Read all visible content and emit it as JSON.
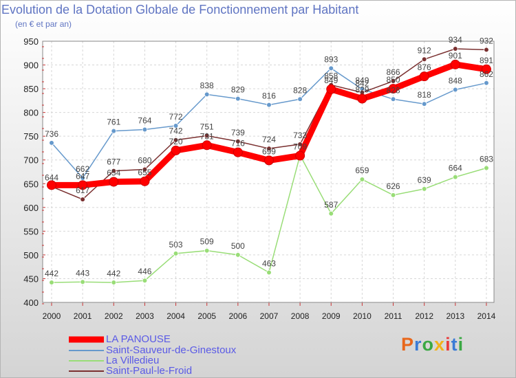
{
  "chart_data": {
    "type": "line",
    "title": "Evolution de la Dotation Globale de Fonctionnement par Habitant",
    "subtitle": "(en € et par an)",
    "x": [
      "2000",
      "2001",
      "2002",
      "2003",
      "2004",
      "2005",
      "2006",
      "2007",
      "2008",
      "2009",
      "2010",
      "2011",
      "2012",
      "2013",
      "2014"
    ],
    "ylim": [
      400,
      950
    ],
    "yticks": [
      400,
      450,
      500,
      550,
      600,
      650,
      700,
      750,
      800,
      850,
      900,
      950
    ],
    "grid": true,
    "series": [
      {
        "name": "LA PANOUSE",
        "color": "#ff0000",
        "emphasis": true,
        "values": [
          647,
          647,
          654,
          655,
          720,
          731,
          716,
          699,
          709,
          849,
          829,
          850,
          876,
          901,
          891
        ],
        "labels": [
          "",
          "647",
          "654",
          "655",
          "720",
          "731",
          "716",
          "699",
          "709",
          "849",
          "829",
          "850",
          "876",
          "901",
          "891"
        ]
      },
      {
        "name": "Saint-Sauveur-de-Ginestoux",
        "color": "#6699cc",
        "values": [
          736,
          662,
          761,
          764,
          772,
          838,
          829,
          816,
          828,
          893,
          849,
          828,
          818,
          848,
          862
        ],
        "labels": [
          "736",
          "662",
          "761",
          "764",
          "772",
          "838",
          "829",
          "816",
          "828",
          "893",
          "849",
          "828",
          "818",
          "848",
          "862"
        ]
      },
      {
        "name": "La Villedieu",
        "color": "#99dd77",
        "values": [
          442,
          443,
          442,
          446,
          503,
          509,
          500,
          463,
          710,
          587,
          659,
          626,
          639,
          664,
          683
        ],
        "labels": [
          "442",
          "443",
          "442",
          "446",
          "503",
          "509",
          "500",
          "463",
          "",
          "587",
          "659",
          "626",
          "639",
          "664",
          "683"
        ]
      },
      {
        "name": "Saint-Paul-le-Froid",
        "color": "#7a3030",
        "values": [
          644,
          617,
          677,
          680,
          742,
          751,
          739,
          724,
          733,
          858,
          842,
          866,
          912,
          934,
          932
        ],
        "labels": [
          "644",
          "617",
          "677",
          "680",
          "742",
          "751",
          "739",
          "724",
          "733",
          "858",
          "842",
          "866",
          "912",
          "934",
          "932"
        ]
      }
    ]
  },
  "legend": {
    "items": [
      {
        "label": "LA PANOUSE"
      },
      {
        "label": "Saint-Sauveur-de-Ginestoux"
      },
      {
        "label": "La Villedieu"
      },
      {
        "label": "Saint-Paul-le-Froid"
      }
    ]
  },
  "logo": {
    "text": "Proxiti",
    "letters": [
      "P",
      "r",
      "o",
      "x",
      "i",
      "t",
      "i"
    ],
    "colors": [
      "#e8671b",
      "#3a7bd5",
      "#3aa843",
      "#f2b21a",
      "#e83b3b",
      "#3a7bd5",
      "#3aa843"
    ]
  }
}
